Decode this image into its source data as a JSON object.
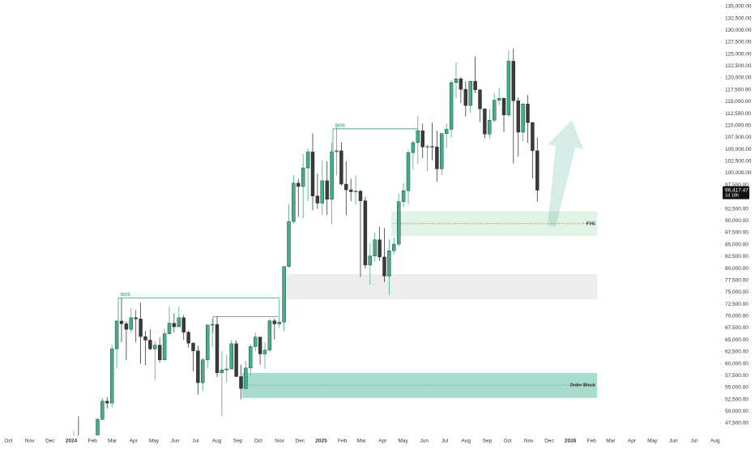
{
  "chart_data": {
    "type": "candlestick",
    "up_color": "#3fae8f",
    "down_color": "#3a3a3a",
    "open": [
      42280,
      43950,
      41700,
      41580,
      42030,
      42580,
      48300,
      52130,
      51730,
      63100,
      68950,
      68400,
      67200,
      69650,
      69400,
      65700,
      64950,
      63100,
      63900,
      60800,
      66300,
      68500,
      67750,
      69650,
      66600,
      64300,
      62700,
      56000,
      60800,
      68100,
      68250,
      58100,
      58700,
      58900,
      64200,
      57300,
      54800,
      59100,
      63600,
      65600,
      62050,
      62850,
      69000,
      68350,
      68750,
      80400,
      89850,
      97900,
      97200,
      101100,
      104450,
      95200,
      93700,
      98400,
      94500,
      104500,
      104700,
      97700,
      96500,
      96100,
      96200,
      94200,
      80700,
      82600,
      86000,
      82400,
      78400,
      83700,
      85100,
      94000,
      96300,
      104300,
      106400,
      108900,
      105500,
      105600,
      105500,
      100900,
      108300,
      109200,
      119000,
      119800,
      117600,
      114200,
      119300,
      117500,
      113500,
      108200,
      111100,
      115300,
      115700,
      112200,
      123500,
      115200,
      108600,
      114500,
      110600,
      104700
    ],
    "high": [
      45900,
      49000,
      43600,
      42200,
      43850,
      48600,
      52800,
      52980,
      64000,
      69200,
      73800,
      68900,
      71700,
      71300,
      72800,
      66900,
      67200,
      64700,
      65500,
      67400,
      71950,
      70600,
      71950,
      70200,
      66950,
      64500,
      63800,
      61300,
      68300,
      69400,
      70000,
      62700,
      61800,
      65000,
      64950,
      59800,
      60600,
      64100,
      66500,
      65600,
      64500,
      69400,
      69500,
      73600,
      80400,
      93500,
      99600,
      98800,
      104000,
      105250,
      108350,
      99900,
      102700,
      102500,
      106400,
      109600,
      106500,
      102500,
      98800,
      99500,
      96500,
      95000,
      85300,
      87500,
      88800,
      88500,
      86100,
      86500,
      95700,
      97900,
      105000,
      106800,
      112000,
      110400,
      106000,
      110600,
      108900,
      108500,
      110500,
      119500,
      123200,
      120200,
      119300,
      119300,
      124500,
      117600,
      113600,
      113400,
      116700,
      117900,
      115900,
      125700,
      126200,
      115900,
      114800,
      116400,
      110800,
      107500
    ],
    "low": [
      40750,
      41500,
      40300,
      38500,
      41800,
      42300,
      48150,
      50600,
      50900,
      59000,
      64500,
      60800,
      66500,
      64500,
      60000,
      59700,
      62800,
      56500,
      60200,
      60700,
      66100,
      66600,
      67700,
      65000,
      63400,
      58400,
      53500,
      54300,
      59000,
      63500,
      57200,
      49000,
      56100,
      58800,
      57200,
      52550,
      54600,
      57600,
      62600,
      59800,
      58900,
      62450,
      65100,
      67500,
      66800,
      80200,
      89400,
      90800,
      90500,
      94200,
      92200,
      92500,
      91200,
      91200,
      89300,
      99500,
      97400,
      91200,
      94100,
      93400,
      78200,
      80000,
      76600,
      81500,
      81600,
      77100,
      74400,
      83000,
      84600,
      92800,
      93400,
      100700,
      102000,
      103100,
      100400,
      102700,
      98200,
      99600,
      105200,
      107500,
      115700,
      114700,
      111900,
      112700,
      116800,
      110700,
      107300,
      107300,
      110600,
      114300,
      108600,
      111800,
      102000,
      103500,
      106700,
      106300,
      98900,
      94000
    ],
    "close": [
      43950,
      41700,
      41580,
      42030,
      42580,
      48300,
      52130,
      51730,
      63100,
      68950,
      68400,
      67200,
      69650,
      69400,
      65700,
      64950,
      63100,
      63900,
      60800,
      66300,
      68500,
      67750,
      69650,
      66600,
      64300,
      62700,
      56000,
      60800,
      68100,
      68250,
      58100,
      58700,
      58900,
      64200,
      57300,
      54800,
      59100,
      63600,
      65600,
      62050,
      62850,
      69000,
      68350,
      68750,
      80400,
      89850,
      97900,
      97200,
      101100,
      104450,
      95200,
      93700,
      98400,
      94500,
      104500,
      104700,
      97700,
      96500,
      96100,
      96200,
      94200,
      80700,
      82600,
      86000,
      82400,
      78400,
      83700,
      85100,
      94000,
      96300,
      104300,
      106400,
      108900,
      105500,
      105600,
      105500,
      100900,
      108300,
      109200,
      119000,
      119800,
      117600,
      114200,
      119300,
      117500,
      113500,
      108200,
      111100,
      115300,
      115700,
      112200,
      123500,
      115200,
      108600,
      114500,
      110600,
      104700,
      96417.47
    ],
    "last_price": {
      "value": 96417.47,
      "label": "96,417.47"
    },
    "countdown": "1d 18h",
    "ylim": [
      45000,
      136000
    ],
    "yticks": [
      {
        "value": 135000,
        "label": "135,000.00"
      },
      {
        "value": 132500,
        "label": "132,500.00"
      },
      {
        "value": 130000,
        "label": "130,000.00"
      },
      {
        "value": 127500,
        "label": "127,500.00"
      },
      {
        "value": 125000,
        "label": "125,000.00"
      },
      {
        "value": 122500,
        "label": "122,500.00"
      },
      {
        "value": 120000,
        "label": "120,000.00"
      },
      {
        "value": 117500,
        "label": "117,500.00"
      },
      {
        "value": 115000,
        "label": "115,000.00"
      },
      {
        "value": 112500,
        "label": "112,500.00"
      },
      {
        "value": 110000,
        "label": "110,000.00"
      },
      {
        "value": 107500,
        "label": "107,500.00"
      },
      {
        "value": 105000,
        "label": "105,000.00"
      },
      {
        "value": 102500,
        "label": "102,500.00"
      },
      {
        "value": 100000,
        "label": "100,000.00"
      },
      {
        "value": 97500,
        "label": "97,500.00"
      },
      {
        "value": 92500,
        "label": "92,500.00"
      },
      {
        "value": 90000,
        "label": "90,000.00"
      },
      {
        "value": 87500,
        "label": "87,500.00"
      },
      {
        "value": 85000,
        "label": "85,000.00"
      },
      {
        "value": 82500,
        "label": "82,500.00"
      },
      {
        "value": 80000,
        "label": "80,000.00"
      },
      {
        "value": 77500,
        "label": "77,500.00"
      },
      {
        "value": 75000,
        "label": "75,000.00"
      },
      {
        "value": 72500,
        "label": "72,500.00"
      },
      {
        "value": 70000,
        "label": "70,000.00"
      },
      {
        "value": 67500,
        "label": "67,500.00"
      },
      {
        "value": 65000,
        "label": "65,000.00"
      },
      {
        "value": 62500,
        "label": "62,500.00"
      },
      {
        "value": 60000,
        "label": "60,000.00"
      },
      {
        "value": 57500,
        "label": "57,500.00"
      },
      {
        "value": 55000,
        "label": "55,000.00"
      },
      {
        "value": 52500,
        "label": "52,500.00"
      },
      {
        "value": 50000,
        "label": "50,000.00"
      },
      {
        "value": 47500,
        "label": "47,500.00"
      }
    ],
    "xticks": [
      "Oct",
      "Nov",
      "Dec",
      "2024",
      "Feb",
      "Mar",
      "Apr",
      "May",
      "Jun",
      "Jul",
      "Aug",
      "Sep",
      "Oct",
      "Nov",
      "Dec",
      "2025",
      "Feb",
      "Mar",
      "Apr",
      "May",
      "Jun",
      "Jul",
      "Aug",
      "Sep",
      "Oct",
      "Nov",
      "Dec",
      "2026",
      "Feb",
      "Mar",
      "Apr",
      "May",
      "Jun",
      "Jul",
      "Aug"
    ],
    "zones": [
      {
        "label": "FVG",
        "top": 92000,
        "bottom": 86800,
        "line": 89400,
        "color": "#e0f3e6"
      },
      {
        "top": 78800,
        "bottom": 73500,
        "color": "#ededed"
      },
      {
        "label": "Order Block",
        "top": 58050,
        "bottom": 52800,
        "line": 55500,
        "color": "#a8dccd"
      }
    ],
    "levels": [
      {
        "label": "BOS",
        "value": 73800,
        "color": "#3fae8f"
      },
      {
        "value": 69900,
        "color": "#8a8a8a"
      },
      {
        "label": "BOS",
        "value": 109300,
        "color": "#3fae8f"
      }
    ]
  }
}
